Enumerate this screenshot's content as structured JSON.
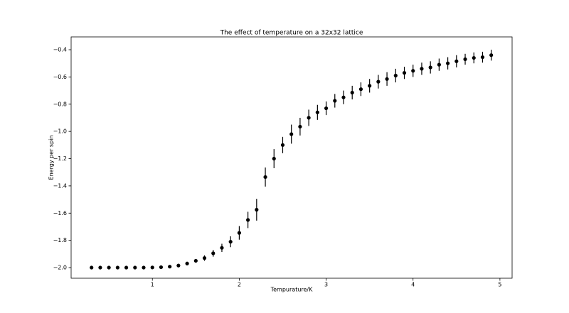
{
  "chart_data": {
    "type": "errorbar",
    "title": "The effect of temperature on a 32x32 lattice",
    "xlabel": "Tempurature/K",
    "ylabel": "Energy per spin",
    "color": "#000000",
    "x": [
      0.3,
      0.4,
      0.5,
      0.6,
      0.7,
      0.8,
      0.9,
      1.0,
      1.1,
      1.2,
      1.3,
      1.4,
      1.5,
      1.6,
      1.7,
      1.8,
      1.9,
      2.0,
      2.1,
      2.2,
      2.3,
      2.4,
      2.5,
      2.6,
      2.7,
      2.8,
      2.9,
      3.0,
      3.1,
      3.2,
      3.3,
      3.4,
      3.5,
      3.6,
      3.7,
      3.8,
      3.9,
      4.0,
      4.1,
      4.2,
      4.3,
      4.4,
      4.5,
      4.6,
      4.7,
      4.8,
      4.9
    ],
    "values": [
      -2.0,
      -2.0,
      -2.0,
      -2.0,
      -2.0,
      -2.0,
      -2.0,
      -1.999,
      -1.997,
      -1.993,
      -1.985,
      -1.97,
      -1.95,
      -1.93,
      -1.895,
      -1.855,
      -1.81,
      -1.745,
      -1.65,
      -1.575,
      -1.335,
      -1.2,
      -1.1,
      -1.02,
      -0.965,
      -0.9,
      -0.86,
      -0.83,
      -0.775,
      -0.75,
      -0.715,
      -0.69,
      -0.665,
      -0.635,
      -0.615,
      -0.59,
      -0.57,
      -0.555,
      -0.54,
      -0.53,
      -0.51,
      -0.5,
      -0.485,
      -0.47,
      -0.46,
      -0.455,
      -0.44
    ],
    "errors": [
      0.001,
      0.001,
      0.001,
      0.001,
      0.001,
      0.002,
      0.002,
      0.002,
      0.003,
      0.004,
      0.006,
      0.01,
      0.013,
      0.02,
      0.025,
      0.03,
      0.04,
      0.05,
      0.06,
      0.08,
      0.07,
      0.07,
      0.06,
      0.07,
      0.065,
      0.06,
      0.055,
      0.05,
      0.05,
      0.05,
      0.05,
      0.05,
      0.05,
      0.05,
      0.05,
      0.05,
      0.045,
      0.045,
      0.045,
      0.045,
      0.045,
      0.045,
      0.045,
      0.04,
      0.04,
      0.04,
      0.04
    ],
    "xlim": [
      0.065,
      5.14
    ],
    "ylim": [
      -2.078,
      -0.306
    ],
    "xticks": [
      1,
      2,
      3,
      4,
      5
    ],
    "yticks": [
      {
        "value": -2.0,
        "label": "−2.0"
      },
      {
        "value": -1.8,
        "label": "−1.8"
      },
      {
        "value": -1.6,
        "label": "−1.6"
      },
      {
        "value": -1.4,
        "label": "−1.4"
      },
      {
        "value": -1.2,
        "label": "−1.2"
      },
      {
        "value": -1.0,
        "label": "−1.0"
      },
      {
        "value": -0.8,
        "label": "−0.8"
      },
      {
        "value": -0.6,
        "label": "−0.6"
      },
      {
        "value": -0.4,
        "label": "−0.4"
      }
    ]
  }
}
